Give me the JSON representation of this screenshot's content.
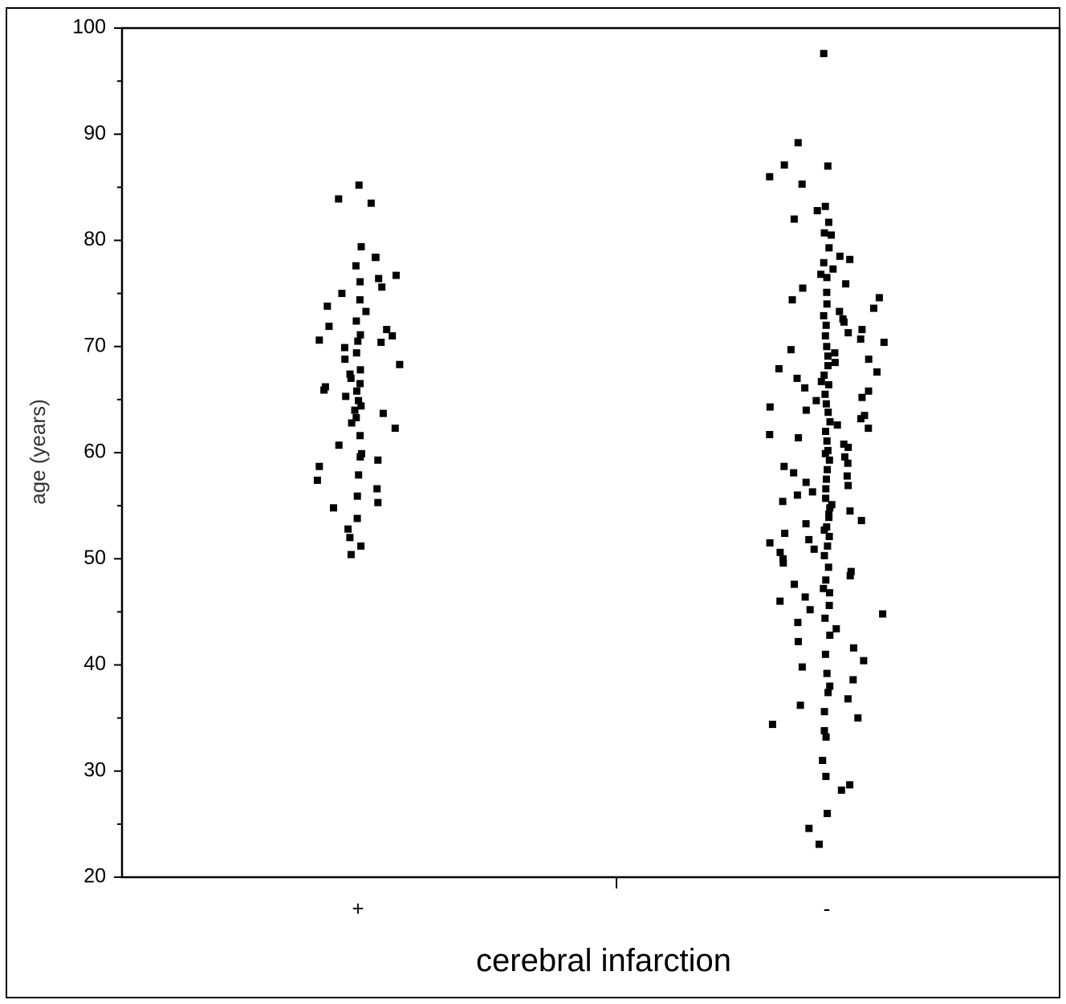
{
  "chart_data": {
    "type": "scatter",
    "title": "",
    "xlabel": "cerebral infarction",
    "ylabel": "age (years)",
    "ylim": [
      20,
      100
    ],
    "yticks": [
      20,
      30,
      40,
      50,
      60,
      70,
      80,
      90,
      100
    ],
    "ytick_labels": [
      "20",
      "30",
      "40",
      "50",
      "60",
      "70",
      "80",
      "90",
      "100"
    ],
    "categories": [
      "+",
      "-"
    ],
    "grid": false,
    "legend": "none",
    "jitter": "horizontal",
    "series": [
      {
        "category": "+",
        "values": [
          85.2,
          83.9,
          83.5,
          79.4,
          78.4,
          78.4,
          77.6,
          76.7,
          76.4,
          76.1,
          75.6,
          75.0,
          74.4,
          73.8,
          73.3,
          72.4,
          71.9,
          71.6,
          71.1,
          71.0,
          70.6,
          70.5,
          70.4,
          69.9,
          69.4,
          68.8,
          68.3,
          67.8,
          67.4,
          67.0,
          66.5,
          66.2,
          65.9,
          65.8,
          65.3,
          64.9,
          64.4,
          64.0,
          63.7,
          63.3,
          62.8,
          62.3,
          61.6,
          60.7,
          59.9,
          59.6,
          59.3,
          58.7,
          57.9,
          57.4,
          56.6,
          55.9,
          55.3,
          54.8,
          53.8,
          52.8,
          52.0,
          51.2,
          50.4
        ]
      },
      {
        "category": "-",
        "values": [
          97.6,
          89.2,
          87.1,
          87.0,
          86.0,
          85.3,
          83.2,
          82.8,
          82.0,
          81.7,
          80.7,
          80.5,
          79.3,
          78.5,
          78.2,
          77.9,
          77.3,
          76.8,
          76.5,
          75.9,
          75.5,
          75.1,
          74.6,
          74.4,
          74.0,
          73.6,
          73.3,
          72.9,
          72.6,
          72.3,
          72.0,
          71.6,
          71.3,
          71.0,
          70.7,
          70.4,
          70.0,
          69.7,
          69.4,
          69.1,
          68.8,
          68.5,
          68.2,
          67.9,
          67.6,
          67.3,
          67.0,
          66.7,
          66.4,
          66.1,
          65.8,
          65.5,
          65.2,
          64.9,
          64.6,
          64.3,
          64.0,
          63.8,
          63.5,
          63.2,
          62.9,
          62.6,
          62.3,
          62.0,
          61.7,
          61.4,
          61.1,
          60.8,
          60.5,
          60.2,
          59.9,
          59.6,
          59.3,
          59.0,
          58.7,
          58.4,
          58.1,
          57.8,
          57.5,
          57.2,
          56.9,
          56.6,
          56.3,
          56.0,
          55.7,
          55.4,
          55.1,
          54.8,
          54.5,
          54.2,
          53.9,
          53.6,
          53.3,
          53.0,
          52.7,
          52.4,
          52.1,
          51.8,
          51.5,
          51.2,
          50.9,
          50.6,
          50.3,
          50.0,
          49.6,
          49.2,
          48.8,
          48.4,
          48.0,
          47.6,
          47.2,
          46.8,
          46.4,
          46.0,
          45.6,
          45.2,
          44.8,
          44.4,
          44.0,
          43.4,
          42.8,
          42.2,
          41.6,
          41.0,
          40.4,
          39.8,
          39.2,
          38.6,
          38.0,
          37.4,
          36.8,
          36.2,
          35.6,
          35.0,
          34.4,
          33.8,
          33.2,
          31.0,
          29.5,
          28.7,
          28.2,
          26.0,
          24.6,
          23.1
        ]
      }
    ]
  }
}
